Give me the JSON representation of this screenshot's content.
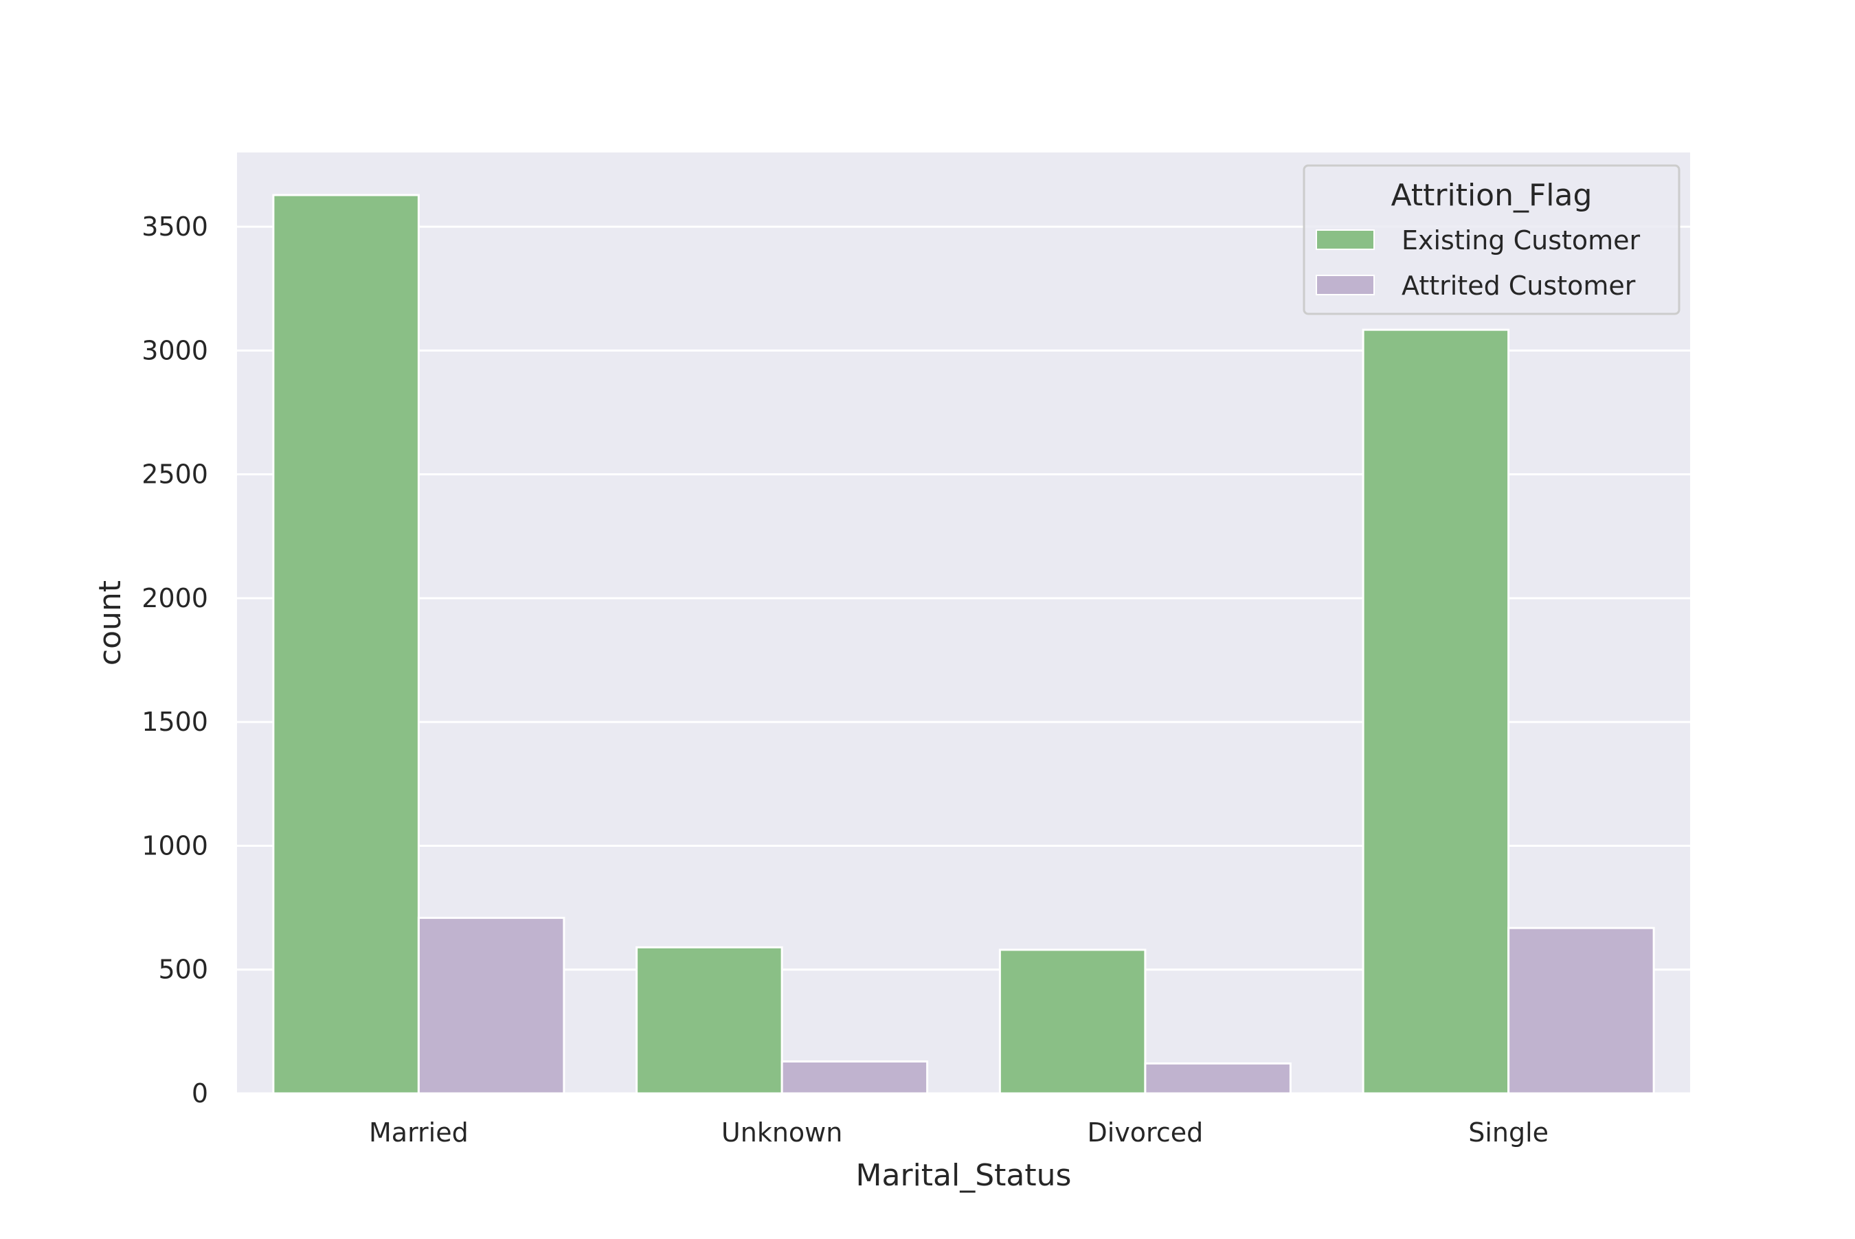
{
  "chart_data": {
    "type": "bar",
    "title": "",
    "xlabel": "Marital_Status",
    "ylabel": "count",
    "categories": [
      "Married",
      "Unknown",
      "Divorced",
      "Single"
    ],
    "series": [
      {
        "name": "Existing Customer",
        "color": "#8abf86",
        "values": [
          3628,
          590,
          580,
          3084
        ]
      },
      {
        "name": "Attrited Customer",
        "color": "#c0b3cf",
        "values": [
          709,
          129,
          121,
          668
        ]
      }
    ],
    "ylim": [
      0,
      3800
    ],
    "yticks": [
      0,
      500,
      1000,
      1500,
      2000,
      2500,
      3000,
      3500
    ],
    "grid": true,
    "background_color": "#eaeaf2",
    "grid_color": "#ffffff",
    "legend": {
      "title": "Attrition_Flag",
      "position": "top-right"
    }
  }
}
